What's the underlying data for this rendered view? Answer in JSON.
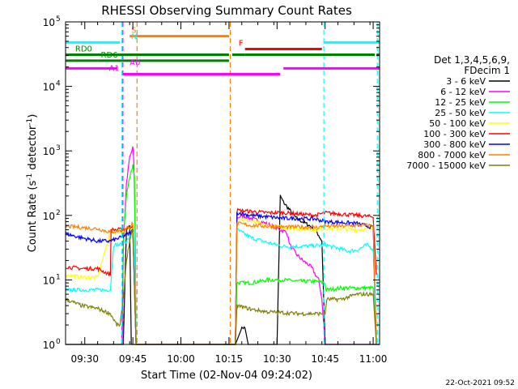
{
  "chart_data": {
    "type": "line",
    "title": "RHESSI Observing Summary Count Rates",
    "xlabel": "Start Time (02-Nov-04 09:24:02)",
    "ylabel_main": "Count Rate (s",
    "ylabel_exp1": "-1",
    "ylabel_mid": " detector",
    "ylabel_exp2": "-1",
    "ylabel_end": ")",
    "yscale": "log",
    "ylim": [
      1,
      100000
    ],
    "xlim_minutes": [
      0,
      98
    ],
    "x_ticks": [
      {
        "label": "09:30",
        "minutes": 6
      },
      {
        "label": "09:45",
        "minutes": 21
      },
      {
        "label": "10:00",
        "minutes": 36
      },
      {
        "label": "10:15",
        "minutes": 51
      },
      {
        "label": "10:30",
        "minutes": 66
      },
      {
        "label": "10:45",
        "minutes": 81
      },
      {
        "label": "11:00",
        "minutes": 96
      }
    ],
    "y_ticks": [
      {
        "base": "10",
        "exp": "0",
        "value": 1
      },
      {
        "base": "10",
        "exp": "1",
        "value": 10
      },
      {
        "base": "10",
        "exp": "2",
        "value": 100
      },
      {
        "base": "10",
        "exp": "3",
        "value": 1000
      },
      {
        "base": "10",
        "exp": "4",
        "value": 10000
      },
      {
        "base": "10",
        "exp": "5",
        "value": 100000
      }
    ],
    "legend_header": [
      "Det 1,3,4,5,6,9,",
      "FDecim 1"
    ],
    "legend_position": "right",
    "series": [
      {
        "name": "3 - 6 keV",
        "color": "#000000",
        "points": [
          [
            0,
            1
          ],
          [
            16,
            1
          ],
          [
            18,
            1
          ],
          [
            19,
            60
          ],
          [
            20,
            70
          ],
          [
            20.5,
            1
          ],
          [
            53,
            1
          ],
          [
            55,
            1.8
          ],
          [
            56,
            1.8
          ],
          [
            57,
            1
          ],
          [
            66,
            1
          ],
          [
            67,
            200
          ],
          [
            68,
            160
          ],
          [
            70,
            120
          ],
          [
            72,
            90
          ],
          [
            74,
            80
          ],
          [
            76,
            70
          ],
          [
            78,
            60
          ],
          [
            80,
            40
          ],
          [
            81,
            1
          ],
          [
            98,
            1
          ]
        ]
      },
      {
        "name": "6 - 12 keV",
        "color": "#ff00ff",
        "points": [
          [
            0,
            1
          ],
          [
            17.5,
            1
          ],
          [
            18,
            30
          ],
          [
            19,
            300
          ],
          [
            20,
            800
          ],
          [
            21,
            1100
          ],
          [
            21.3,
            700
          ],
          [
            21.7,
            80
          ],
          [
            22,
            1
          ],
          [
            53,
            1
          ],
          [
            53.5,
            90
          ],
          [
            55,
            100
          ],
          [
            58,
            90
          ],
          [
            61,
            80
          ],
          [
            64,
            70
          ],
          [
            67,
            60
          ],
          [
            69,
            55
          ],
          [
            70,
            35
          ],
          [
            72,
            25
          ],
          [
            74,
            20
          ],
          [
            76,
            17
          ],
          [
            77,
            15
          ],
          [
            78,
            12
          ],
          [
            79,
            10
          ],
          [
            80,
            5
          ],
          [
            81,
            1
          ],
          [
            98,
            1
          ]
        ]
      },
      {
        "name": "12 - 25 keV",
        "color": "#00ff00",
        "points": [
          [
            0,
            1
          ],
          [
            17.8,
            1
          ],
          [
            18,
            40
          ],
          [
            19,
            200
          ],
          [
            20,
            400
          ],
          [
            21,
            600
          ],
          [
            21.5,
            400
          ],
          [
            22,
            1
          ],
          [
            53,
            1
          ],
          [
            53.5,
            9
          ],
          [
            58,
            9
          ],
          [
            63,
            10
          ],
          [
            68,
            10
          ],
          [
            73,
            9.5
          ],
          [
            78,
            9.5
          ],
          [
            81,
            9
          ],
          [
            81.2,
            7
          ],
          [
            86,
            7.5
          ],
          [
            91,
            7.5
          ],
          [
            96,
            7.5
          ],
          [
            97,
            1
          ]
        ]
      },
      {
        "name": "25 - 50 keV",
        "color": "#00ffff",
        "points": [
          [
            0,
            7
          ],
          [
            5,
            7
          ],
          [
            10,
            7
          ],
          [
            14,
            7
          ],
          [
            15,
            35
          ],
          [
            17,
            35
          ],
          [
            18,
            38
          ],
          [
            19,
            40
          ],
          [
            20,
            45
          ],
          [
            21,
            60
          ],
          [
            21.5,
            60
          ],
          [
            22,
            1
          ],
          [
            53,
            1
          ],
          [
            53.5,
            60
          ],
          [
            58,
            45
          ],
          [
            63,
            38
          ],
          [
            68,
            33
          ],
          [
            73,
            33
          ],
          [
            78,
            34
          ],
          [
            81,
            35
          ],
          [
            85,
            31
          ],
          [
            88,
            28
          ],
          [
            91,
            29
          ],
          [
            94,
            35
          ],
          [
            96,
            30
          ],
          [
            97,
            1
          ]
        ]
      },
      {
        "name": "50 - 100 keV",
        "color": "#ffff00",
        "points": [
          [
            0,
            12
          ],
          [
            5,
            11
          ],
          [
            10,
            11
          ],
          [
            14,
            55
          ],
          [
            17,
            56
          ],
          [
            19,
            60
          ],
          [
            21,
            65
          ],
          [
            22,
            1
          ],
          [
            53,
            1
          ],
          [
            53.5,
            90
          ],
          [
            58,
            80
          ],
          [
            63,
            70
          ],
          [
            68,
            65
          ],
          [
            73,
            62
          ],
          [
            78,
            60
          ],
          [
            81,
            63
          ],
          [
            86,
            62
          ],
          [
            91,
            60
          ],
          [
            96,
            62
          ],
          [
            97,
            1
          ]
        ]
      },
      {
        "name": "100 - 300 keV",
        "color": "#ff0000",
        "points": [
          [
            0,
            16
          ],
          [
            5,
            15
          ],
          [
            10,
            15
          ],
          [
            14,
            12
          ],
          [
            14.2,
            60
          ],
          [
            17,
            60
          ],
          [
            19,
            62
          ],
          [
            21,
            70
          ],
          [
            22,
            1
          ],
          [
            53,
            1
          ],
          [
            53.5,
            120
          ],
          [
            58,
            115
          ],
          [
            63,
            110
          ],
          [
            68,
            110
          ],
          [
            73,
            105
          ],
          [
            78,
            100
          ],
          [
            81,
            110
          ],
          [
            86,
            105
          ],
          [
            91,
            100
          ],
          [
            96,
            95
          ],
          [
            97,
            12
          ]
        ]
      },
      {
        "name": "300 - 800 keV",
        "color": "#0000ff",
        "points": [
          [
            0,
            52
          ],
          [
            5,
            45
          ],
          [
            10,
            40
          ],
          [
            14,
            40
          ],
          [
            17,
            45
          ],
          [
            19,
            50
          ],
          [
            21,
            58
          ],
          [
            22,
            1
          ],
          [
            53,
            1
          ],
          [
            53.5,
            110
          ],
          [
            58,
            100
          ],
          [
            63,
            95
          ],
          [
            68,
            90
          ],
          [
            73,
            90
          ],
          [
            78,
            88
          ],
          [
            81,
            80
          ],
          [
            86,
            78
          ],
          [
            91,
            75
          ],
          [
            96,
            65
          ],
          [
            97,
            1
          ]
        ]
      },
      {
        "name": "800 - 7000 keV",
        "color": "#ff8000",
        "points": [
          [
            0,
            68
          ],
          [
            5,
            65
          ],
          [
            10,
            62
          ],
          [
            14,
            55
          ],
          [
            17,
            58
          ],
          [
            19,
            62
          ],
          [
            21,
            75
          ],
          [
            22,
            1
          ],
          [
            53,
            1
          ],
          [
            53.5,
            75
          ],
          [
            58,
            70
          ],
          [
            63,
            68
          ],
          [
            68,
            66
          ],
          [
            73,
            66
          ],
          [
            78,
            65
          ],
          [
            81,
            68
          ],
          [
            86,
            68
          ],
          [
            91,
            70
          ],
          [
            96,
            70
          ],
          [
            97,
            1
          ]
        ]
      },
      {
        "name": "7000 - 15000 keV",
        "color": "#808000",
        "points": [
          [
            0,
            5
          ],
          [
            5,
            4
          ],
          [
            10,
            3.6
          ],
          [
            14,
            3
          ],
          [
            16,
            2
          ],
          [
            17,
            2
          ],
          [
            18,
            5
          ],
          [
            19,
            20
          ],
          [
            20,
            40
          ],
          [
            21,
            60
          ],
          [
            22,
            1
          ],
          [
            53,
            1
          ],
          [
            53.5,
            4
          ],
          [
            58,
            3.5
          ],
          [
            63,
            3.2
          ],
          [
            68,
            3.1
          ],
          [
            73,
            3
          ],
          [
            78,
            3
          ],
          [
            81,
            3
          ],
          [
            81.5,
            5
          ],
          [
            86,
            5
          ],
          [
            91,
            6
          ],
          [
            96,
            6
          ],
          [
            97,
            1
          ]
        ]
      }
    ],
    "flags": [
      {
        "label": "S",
        "color": "#ff8000",
        "y": 60000,
        "segments": [
          [
            20,
            51
          ]
        ],
        "label_at": 20.5
      },
      {
        "label": "N",
        "color": "#00ffff",
        "y": 48000,
        "segments": [
          [
            0,
            17
          ],
          [
            80.5,
            98
          ]
        ],
        "label_at": 20.5
      },
      {
        "label": "F",
        "color": "#ff0000",
        "y": 38000,
        "segments": [
          [
            56,
            80
          ]
        ],
        "label_at": 54
      },
      {
        "label": "RD0",
        "color": "#008000",
        "y": 31000,
        "segments": [
          [
            0,
            51
          ],
          [
            52,
            56
          ],
          [
            56,
            96.5
          ],
          [
            97,
            98
          ]
        ],
        "label_at": 3
      },
      {
        "label": "RD6",
        "color": "#008000",
        "y": 25000,
        "segments": [
          [
            0,
            10
          ],
          [
            10,
            51
          ]
        ],
        "label_at": 11
      },
      {
        "label": "A0",
        "color": "#ff00ff",
        "y": 19000,
        "segments": [
          [
            0,
            16
          ],
          [
            68,
            98
          ]
        ],
        "label_at": 20
      },
      {
        "label": "A1",
        "color": "#ff00ff",
        "y": 15500,
        "segments": [
          [
            18,
            67
          ]
        ],
        "label_at": 13.5
      }
    ],
    "vlines": [
      {
        "color": "#00ffff",
        "minutes": 17.6
      },
      {
        "color": "#ff00ff",
        "minutes": 17.9
      },
      {
        "color": "#ff8000",
        "minutes": 22.3
      },
      {
        "color": "#ff8000",
        "minutes": 51.4
      },
      {
        "color": "#00ffff",
        "minutes": 80.6
      },
      {
        "color": "#00ffff",
        "minutes": 97.3
      }
    ]
  },
  "timestamp": "22-Oct-2021 09:52"
}
